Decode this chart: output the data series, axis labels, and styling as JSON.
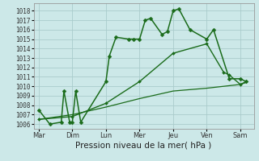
{
  "xlabel": "Pression niveau de la mer( hPa )",
  "bg_color": "#cce8e8",
  "grid_color": "#aacccc",
  "line_color": "#1a6b1a",
  "ylim": [
    1005.5,
    1018.8
  ],
  "yticks": [
    1006,
    1007,
    1008,
    1009,
    1010,
    1011,
    1012,
    1013,
    1014,
    1015,
    1016,
    1017,
    1018
  ],
  "x_labels": [
    "Mar",
    "Dim",
    "Lun",
    "Mer",
    "Jeu",
    "Ven",
    "Sam"
  ],
  "x_positions": [
    0,
    1,
    2,
    3,
    4,
    5,
    6
  ],
  "xlim": [
    -0.15,
    6.4
  ],
  "line1_x": [
    0.0,
    0.33,
    0.67,
    0.75,
    0.92,
    1.0,
    1.1,
    1.25,
    2.0,
    2.1,
    2.3,
    2.67,
    2.83,
    3.0,
    3.17,
    3.33,
    3.67,
    3.83,
    4.0,
    4.17,
    4.5,
    5.0,
    5.2,
    5.67,
    6.0,
    6.17
  ],
  "line1_y": [
    1007.5,
    1006.0,
    1006.2,
    1009.5,
    1006.2,
    1006.2,
    1009.5,
    1006.2,
    1010.5,
    1013.2,
    1015.2,
    1015.0,
    1015.0,
    1015.0,
    1017.0,
    1017.2,
    1015.5,
    1015.8,
    1018.0,
    1018.2,
    1016.0,
    1015.0,
    1016.0,
    1010.8,
    1010.8,
    1010.5
  ],
  "line2_x": [
    0.0,
    1.0,
    2.0,
    3.0,
    4.0,
    5.0,
    5.5,
    5.67,
    6.0,
    6.17
  ],
  "line2_y": [
    1006.5,
    1006.8,
    1008.2,
    1010.5,
    1013.5,
    1014.5,
    1011.5,
    1011.2,
    1010.2,
    1010.5
  ],
  "line3_x": [
    0.0,
    1.0,
    2.0,
    3.0,
    4.0,
    5.0,
    6.0,
    6.17
  ],
  "line3_y": [
    1006.5,
    1007.0,
    1007.8,
    1008.7,
    1009.5,
    1009.8,
    1010.2,
    1010.4
  ],
  "marker_size_main": 2.5,
  "marker_size_med": 2.0,
  "linewidth_main": 1.1,
  "linewidth_med": 1.0,
  "linewidth_thin": 0.9,
  "tick_fontsize": 5.5,
  "xlabel_fontsize": 7.5
}
